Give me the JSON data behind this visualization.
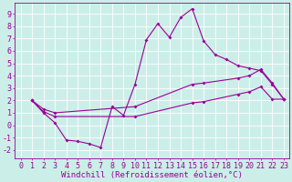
{
  "background_color": "#cceee8",
  "grid_color": "#aadddd",
  "line_color": "#990099",
  "marker": "D",
  "markersize": 2.0,
  "linewidth": 0.8,
  "xlabel": "Windchill (Refroidissement éolien,°C)",
  "xlabel_fontsize": 6.5,
  "tick_fontsize": 6.0,
  "xlim": [
    -0.5,
    23.5
  ],
  "ylim": [
    -2.7,
    9.9
  ],
  "yticks": [
    -2,
    -1,
    0,
    1,
    2,
    3,
    4,
    5,
    6,
    7,
    8,
    9
  ],
  "xticks": [
    0,
    1,
    2,
    3,
    4,
    5,
    6,
    7,
    8,
    9,
    10,
    11,
    12,
    13,
    14,
    15,
    16,
    17,
    18,
    19,
    20,
    21,
    22,
    23
  ],
  "curve1_x": [
    1,
    2,
    3,
    4,
    5,
    6,
    7,
    8,
    9,
    10,
    11,
    12,
    13,
    14,
    15,
    16,
    17,
    18,
    19,
    20,
    21,
    22,
    23
  ],
  "curve1_y": [
    2.0,
    1.0,
    0.2,
    -1.2,
    -1.3,
    -1.5,
    -1.8,
    1.5,
    0.8,
    3.3,
    6.9,
    8.2,
    7.1,
    8.7,
    9.4,
    6.8,
    5.7,
    5.3,
    4.8,
    4.6,
    4.4,
    3.3,
    2.1
  ],
  "curve2_x": [
    1,
    2,
    3,
    10,
    15,
    16,
    19,
    20,
    21,
    22,
    23
  ],
  "curve2_y": [
    2.0,
    1.3,
    1.0,
    1.5,
    3.3,
    3.4,
    3.8,
    4.0,
    4.5,
    3.4,
    2.1
  ],
  "curve3_x": [
    1,
    2,
    3,
    10,
    15,
    16,
    19,
    20,
    21,
    22,
    23
  ],
  "curve3_y": [
    2.0,
    1.1,
    0.7,
    0.7,
    1.8,
    1.9,
    2.5,
    2.7,
    3.1,
    2.1,
    2.1
  ]
}
